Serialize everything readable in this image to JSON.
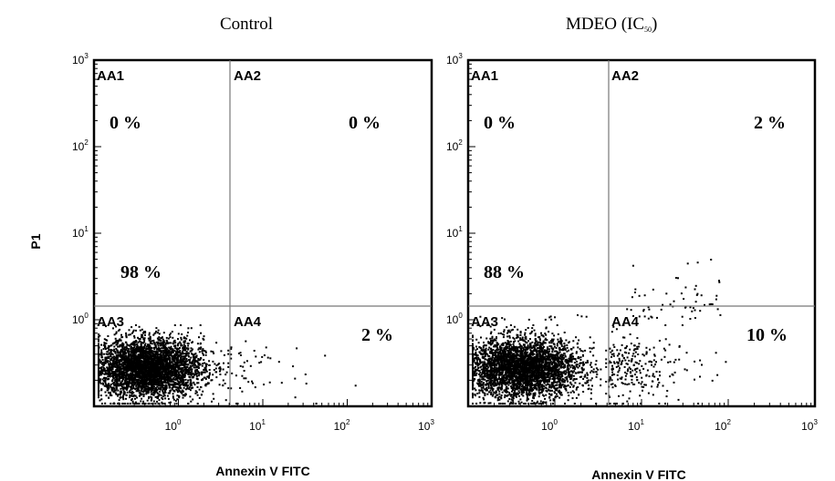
{
  "chart_data": {
    "type": "scatter",
    "x_scale": "log",
    "y_scale": "log",
    "xlim": [
      0.1,
      1000
    ],
    "ylim": [
      0.1,
      1000
    ],
    "x_ticks": [
      {
        "base": "10",
        "exp": "0",
        "value": 1
      },
      {
        "base": "10",
        "exp": "1",
        "value": 10
      },
      {
        "base": "10",
        "exp": "2",
        "value": 100
      },
      {
        "base": "10",
        "exp": "3",
        "value": 1000
      }
    ],
    "y_ticks": [
      {
        "base": "10",
        "exp": "0",
        "value": 1
      },
      {
        "base": "10",
        "exp": "1",
        "value": 10
      },
      {
        "base": "10",
        "exp": "2",
        "value": 100
      },
      {
        "base": "10",
        "exp": "3",
        "value": 1000
      }
    ],
    "ylabel": "P1",
    "quadrant_gate": {
      "x": 4,
      "y": 1
    },
    "panels": [
      {
        "title": "Control",
        "xlabel": "Annexin V  FITC",
        "quadrants": {
          "AA1": "AA1",
          "AA2": "AA2",
          "AA3": "AA3",
          "AA4": "AA4"
        },
        "percentages": {
          "AA1": "0 %",
          "AA2": "0 %",
          "AA3": "98 %",
          "AA4": "2 %"
        },
        "events": {
          "AA1": 0,
          "AA2": 0,
          "AA3": 98,
          "AA4": 2
        }
      },
      {
        "title": "MDEO (IC",
        "title_sub": "50",
        "title_end": ")",
        "xlabel": "Annexin V  FITC",
        "quadrants": {
          "AA1": "AA1",
          "AA2": "AA2",
          "AA3": "AA3",
          "AA4": "AA4"
        },
        "percentages": {
          "AA1": "0 %",
          "AA2": "2 %",
          "AA3": "88 %",
          "AA4": "10 %"
        },
        "events": {
          "AA1": 0,
          "AA2": 2,
          "AA3": 88,
          "AA4": 10
        }
      }
    ]
  }
}
